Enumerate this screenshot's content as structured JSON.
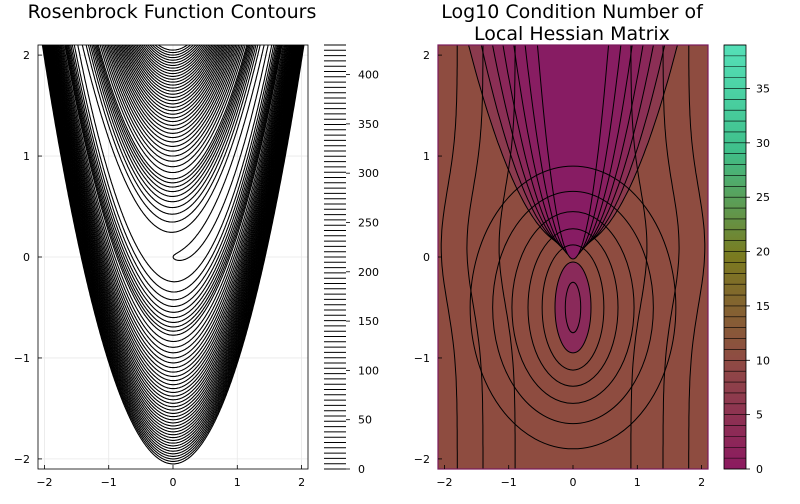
{
  "chart_data": [
    {
      "type": "contour",
      "title": "Rosenbrock Function Contours",
      "xlim": [
        -2.1,
        2.1
      ],
      "ylim": [
        -2.1,
        2.1
      ],
      "xticks": [
        -2,
        -1,
        0,
        1,
        2
      ],
      "yticks": [
        -2,
        -1,
        0,
        1,
        2
      ],
      "grid": true,
      "colorbar": {
        "range": [
          0,
          430
        ],
        "ticks": [
          0,
          50,
          100,
          150,
          200,
          250,
          300,
          350,
          400
        ],
        "levels": 80,
        "color": "#000000"
      },
      "contour_levels": [
        1,
        4,
        10,
        25,
        50,
        75,
        100,
        125,
        150,
        175,
        200,
        225,
        250,
        275,
        300,
        325,
        350,
        375,
        400,
        425
      ]
    },
    {
      "type": "filled-contour",
      "title": "Log10 Condition Number of Local Hessian Matrix",
      "title_lines": [
        "Log10 Condition Number of",
        "Local Hessian Matrix"
      ],
      "xlim": [
        -2.1,
        2.1
      ],
      "ylim": [
        -2.1,
        2.1
      ],
      "xticks": [
        -2,
        -1,
        0,
        1,
        2
      ],
      "yticks": [
        -2,
        -1,
        0,
        1,
        2
      ],
      "grid": false,
      "colorbar": {
        "range": [
          0,
          39
        ],
        "ticks": [
          0,
          5,
          10,
          15,
          20,
          25,
          30,
          35
        ],
        "colors": [
          "#8c1a60",
          "#8f4a44",
          "#7a7a1f",
          "#3fbf8a",
          "#55e0b8"
        ]
      },
      "colors": {
        "background": "#8e4c40",
        "valley": "#8a1e62",
        "border": "#7a1a5c"
      }
    }
  ]
}
